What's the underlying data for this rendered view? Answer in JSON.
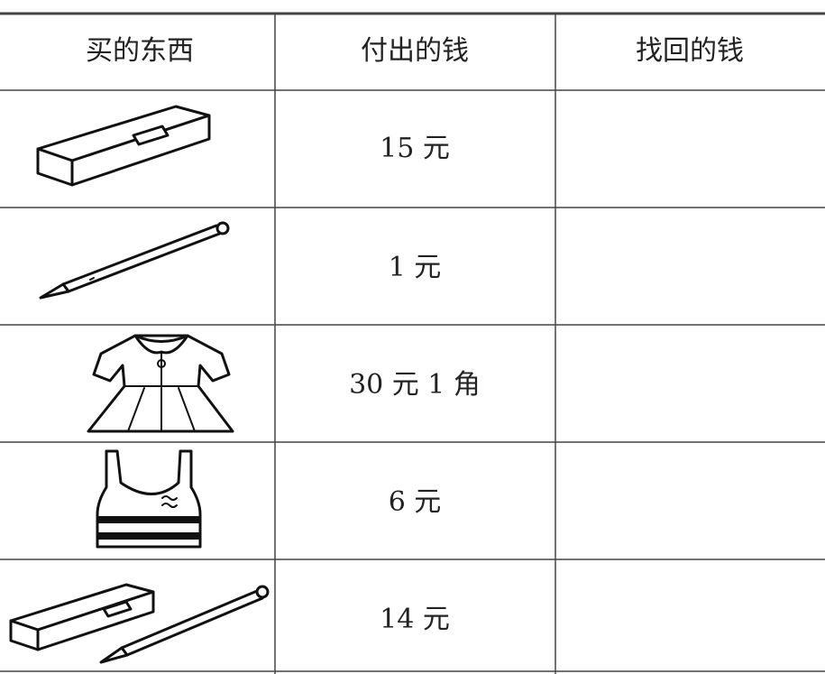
{
  "table": {
    "header": [
      "买的东西",
      "付出的钱",
      "找回的钱"
    ],
    "rows": [
      [
        "15 元"
      ],
      [
        "1 元"
      ],
      [
        "30 元 1 角"
      ],
      [
        "6 元"
      ],
      [
        "14 元"
      ]
    ]
  }
}
